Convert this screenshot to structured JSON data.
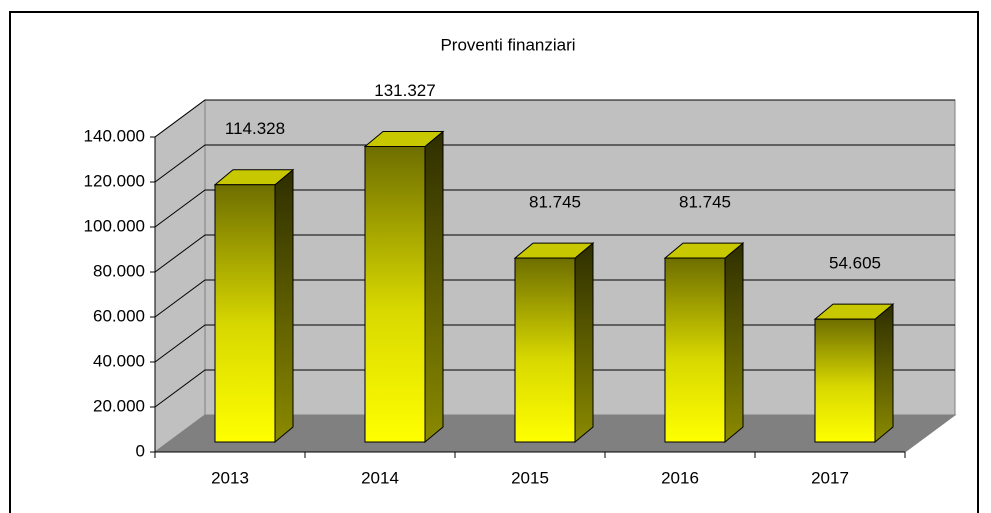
{
  "chart_data": {
    "type": "bar3d",
    "title": "Proventi finanziari",
    "categories": [
      "2013",
      "2014",
      "2015",
      "2016",
      "2017"
    ],
    "values": [
      114328,
      131327,
      81745,
      81745,
      54605
    ],
    "value_labels": [
      "114.328",
      "131.327",
      "81.745",
      "81.745",
      "54.605"
    ],
    "color": "#ffff00",
    "ylim": [
      0,
      140000
    ],
    "yticks": [
      0,
      {
        "value": 20000,
        "label": "20.000"
      },
      {
        "value": 40000,
        "label": "40.000"
      },
      {
        "value": 60000,
        "label": "60.000"
      },
      {
        "value": 80000,
        "label": "80.000"
      },
      {
        "value": 100000,
        "label": "100.000"
      },
      {
        "value": 120000,
        "label": "120.000"
      },
      {
        "value": 140000,
        "label": "140.000"
      }
    ],
    "grid": true
  }
}
